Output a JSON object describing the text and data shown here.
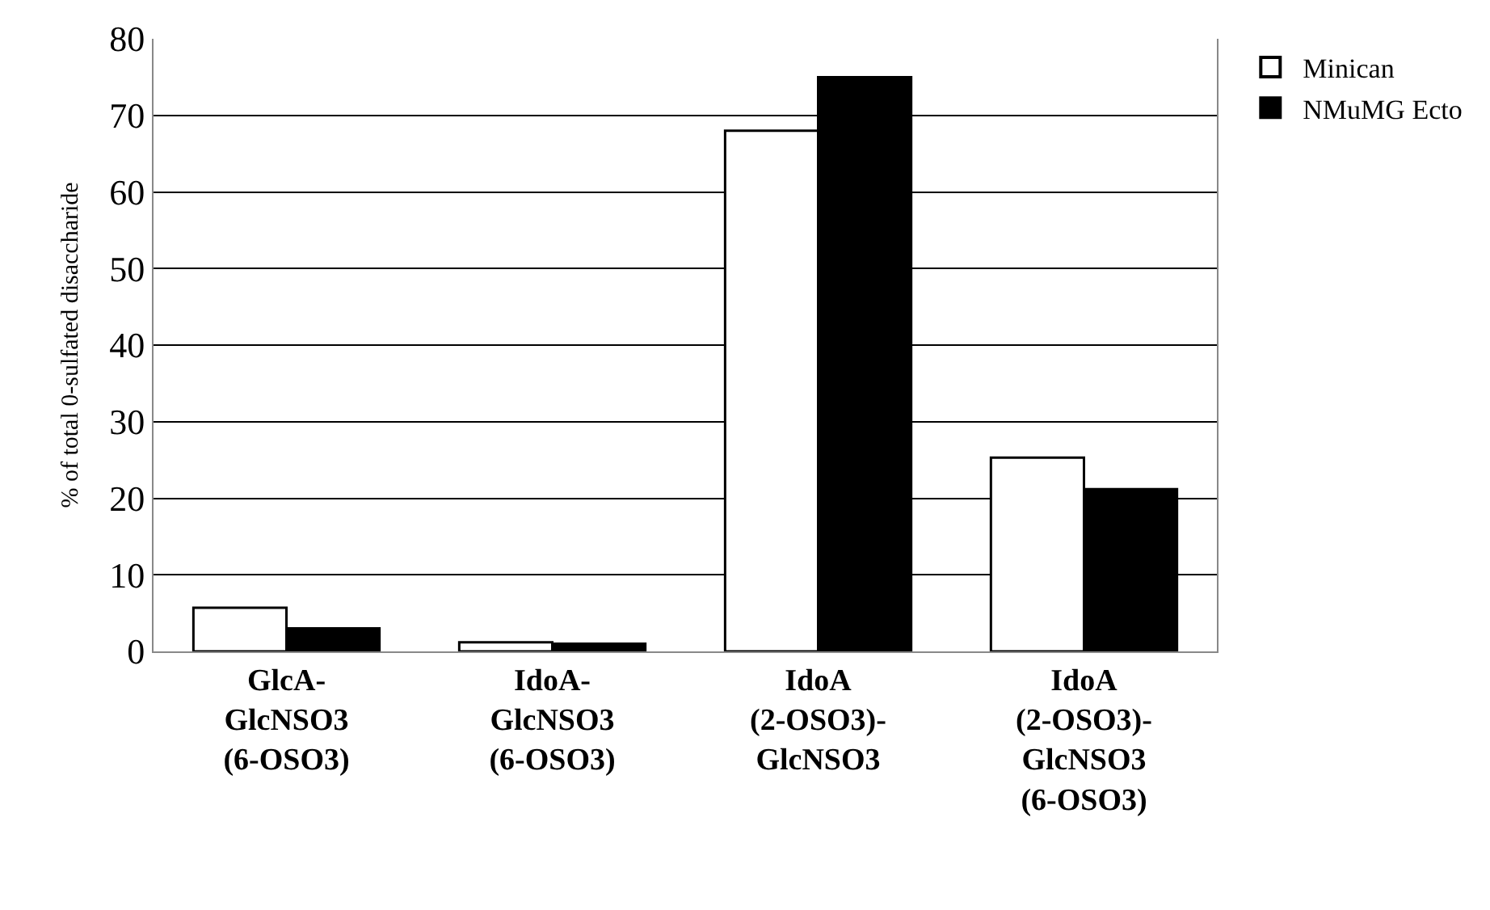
{
  "chart_data": {
    "type": "bar",
    "ylabel": "% of total 0-sulfated disaccharide",
    "categories": [
      "GlcA-\nGlcNSO3\n(6-OSO3)",
      "IdoA-\nGlcNSO3\n(6-OSO3)",
      "IdoA\n(2-OSO3)-\nGlcNSO3",
      "IdoA\n(2-OSO3)-\nGlcNSO3\n(6-OSO3)"
    ],
    "series": [
      {
        "name": "Minican",
        "color": "#ffffff",
        "values": [
          5.7,
          1.2,
          68.0,
          25.3
        ]
      },
      {
        "name": "NMuMG Ecto",
        "color": "#000000",
        "values": [
          3.0,
          1.0,
          75.0,
          21.2
        ]
      }
    ],
    "ylim": [
      0,
      80
    ],
    "yticks": [
      0,
      10,
      20,
      30,
      40,
      50,
      60,
      70,
      80
    ],
    "grid": "y",
    "legend": "right"
  }
}
